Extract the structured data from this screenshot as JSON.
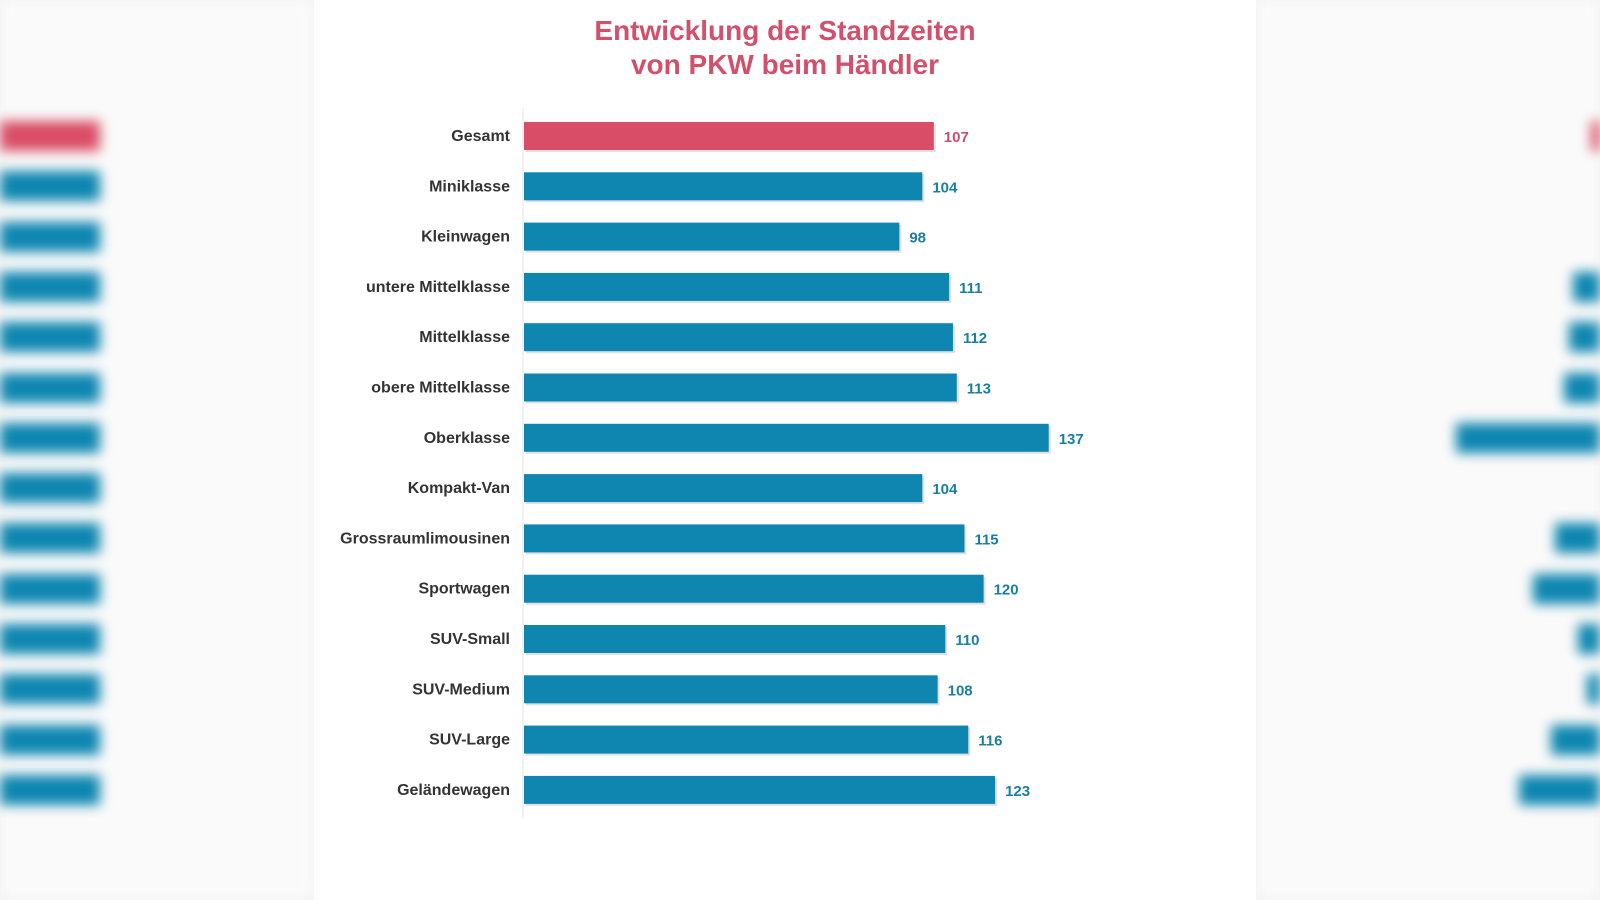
{
  "chart_data": {
    "type": "bar",
    "orientation": "horizontal",
    "title": "Entwicklung der Standzeiten von PKW beim Händler",
    "title_lines": [
      "Entwicklung der Standzeiten",
      "von PKW beim Händler"
    ],
    "categories": [
      "Gesamt",
      "Miniklasse",
      "Kleinwagen",
      "untere Mittelklasse",
      "Mittelklasse",
      "obere Mittelklasse",
      "Oberklasse",
      "Kompakt-Van",
      "Grossraumlimousinen",
      "Sportwagen",
      "SUV-Small",
      "SUV-Medium",
      "SUV-Large",
      "Geländewagen"
    ],
    "values": [
      107,
      104,
      98,
      111,
      112,
      113,
      137,
      104,
      115,
      120,
      110,
      108,
      116,
      123
    ],
    "xlim": [
      0,
      150
    ],
    "grid": false,
    "data_labels": true,
    "colors": {
      "highlight": "#d94d66",
      "bar": "#0e86b0",
      "title": "#d2506b",
      "label_highlight": "#c9506a",
      "label": "#1a7f9f"
    }
  }
}
